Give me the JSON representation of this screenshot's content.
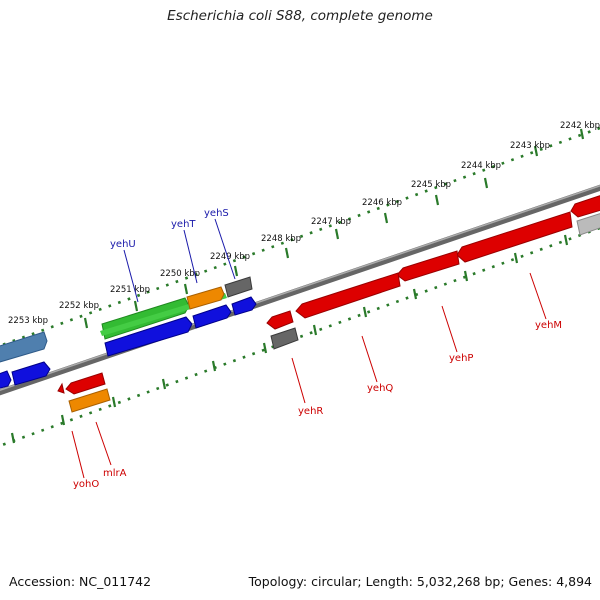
{
  "map": {
    "title": "Escherichia coli S88, complete genome",
    "accession": "Accession: NC_011742",
    "topology": "Topology: circular; Length: 5,032,268 bp; Genes: 4,894"
  },
  "ticks": [
    {
      "label": "2242 kbp"
    },
    {
      "label": "2243 kbp"
    },
    {
      "label": "2244 kbp"
    },
    {
      "label": "2245 kbp"
    },
    {
      "label": "2246 kbp"
    },
    {
      "label": "2247 kbp"
    },
    {
      "label": "2248 kbp"
    },
    {
      "label": "2249 kbp"
    },
    {
      "label": "2250 kbp"
    },
    {
      "label": "2251 kbp"
    },
    {
      "label": "2252 kbp"
    },
    {
      "label": "2253 kbp"
    }
  ],
  "gene_labels": {
    "yehS": "yehS",
    "yehT": "yehT",
    "yehU": "yehU",
    "yehR": "yehR",
    "yehQ": "yehQ",
    "yehP": "yehP",
    "yehM": "yehM",
    "mlrA": "mlrA",
    "yohO": "yohO"
  },
  "colors": {
    "forward_label": "#1a1aaa",
    "reverse_label": "#cc0000",
    "tick_dots": "#2a7a2a",
    "backbone": "#7a7a7a",
    "gene_red": "#dd0000",
    "gene_blue": "#1010dd",
    "gene_green": "#33bb33",
    "gene_orange": "#ee8800",
    "gene_gray": "#666666",
    "gene_steel": "#4f7fae",
    "gene_silver": "#bbbbbb"
  }
}
